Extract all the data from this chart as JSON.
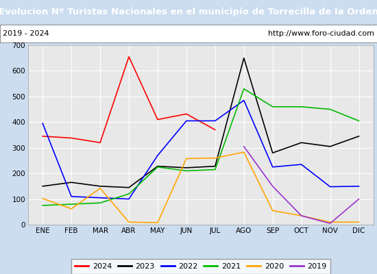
{
  "title": "Evolucion Nº Turistas Nacionales en el municipio de Torrecilla de la Orden",
  "subtitle_left": "2019 - 2024",
  "subtitle_right": "http://www.foro-ciudad.com",
  "months": [
    "ENE",
    "FEB",
    "MAR",
    "ABR",
    "MAY",
    "JUN",
    "JUL",
    "AGO",
    "SEP",
    "OCT",
    "NOV",
    "DIC"
  ],
  "ylim": [
    0,
    700
  ],
  "yticks": [
    0,
    100,
    200,
    300,
    400,
    500,
    600,
    700
  ],
  "series": {
    "2024": {
      "color": "#ff0000",
      "values": [
        345,
        338,
        320,
        655,
        410,
        432,
        370,
        null,
        null,
        null,
        null,
        null
      ]
    },
    "2023": {
      "color": "#000000",
      "values": [
        150,
        165,
        150,
        145,
        228,
        222,
        228,
        650,
        280,
        320,
        305,
        345
      ]
    },
    "2022": {
      "color": "#0000ff",
      "values": [
        395,
        110,
        105,
        100,
        270,
        405,
        405,
        485,
        225,
        235,
        148,
        150
      ]
    },
    "2021": {
      "color": "#00bb00",
      "values": [
        75,
        80,
        85,
        120,
        225,
        210,
        215,
        530,
        460,
        460,
        450,
        405
      ]
    },
    "2020": {
      "color": "#ffa500",
      "values": [
        102,
        62,
        142,
        10,
        8,
        258,
        260,
        283,
        55,
        35,
        10,
        10
      ]
    },
    "2019": {
      "color": "#9932cc",
      "values": [
        null,
        null,
        null,
        null,
        null,
        null,
        null,
        305,
        150,
        35,
        5,
        100
      ]
    }
  },
  "title_bg_color": "#4a86c8",
  "title_text_color": "#ffffff",
  "subtitle_bg_color": "#ffffff",
  "plot_bg_color": "#e8e8e8",
  "outer_bg_color": "#ccddf0",
  "grid_color": "#ffffff",
  "title_fontsize": 9.5,
  "subtitle_fontsize": 8,
  "axis_fontsize": 7.5,
  "legend_fontsize": 8
}
